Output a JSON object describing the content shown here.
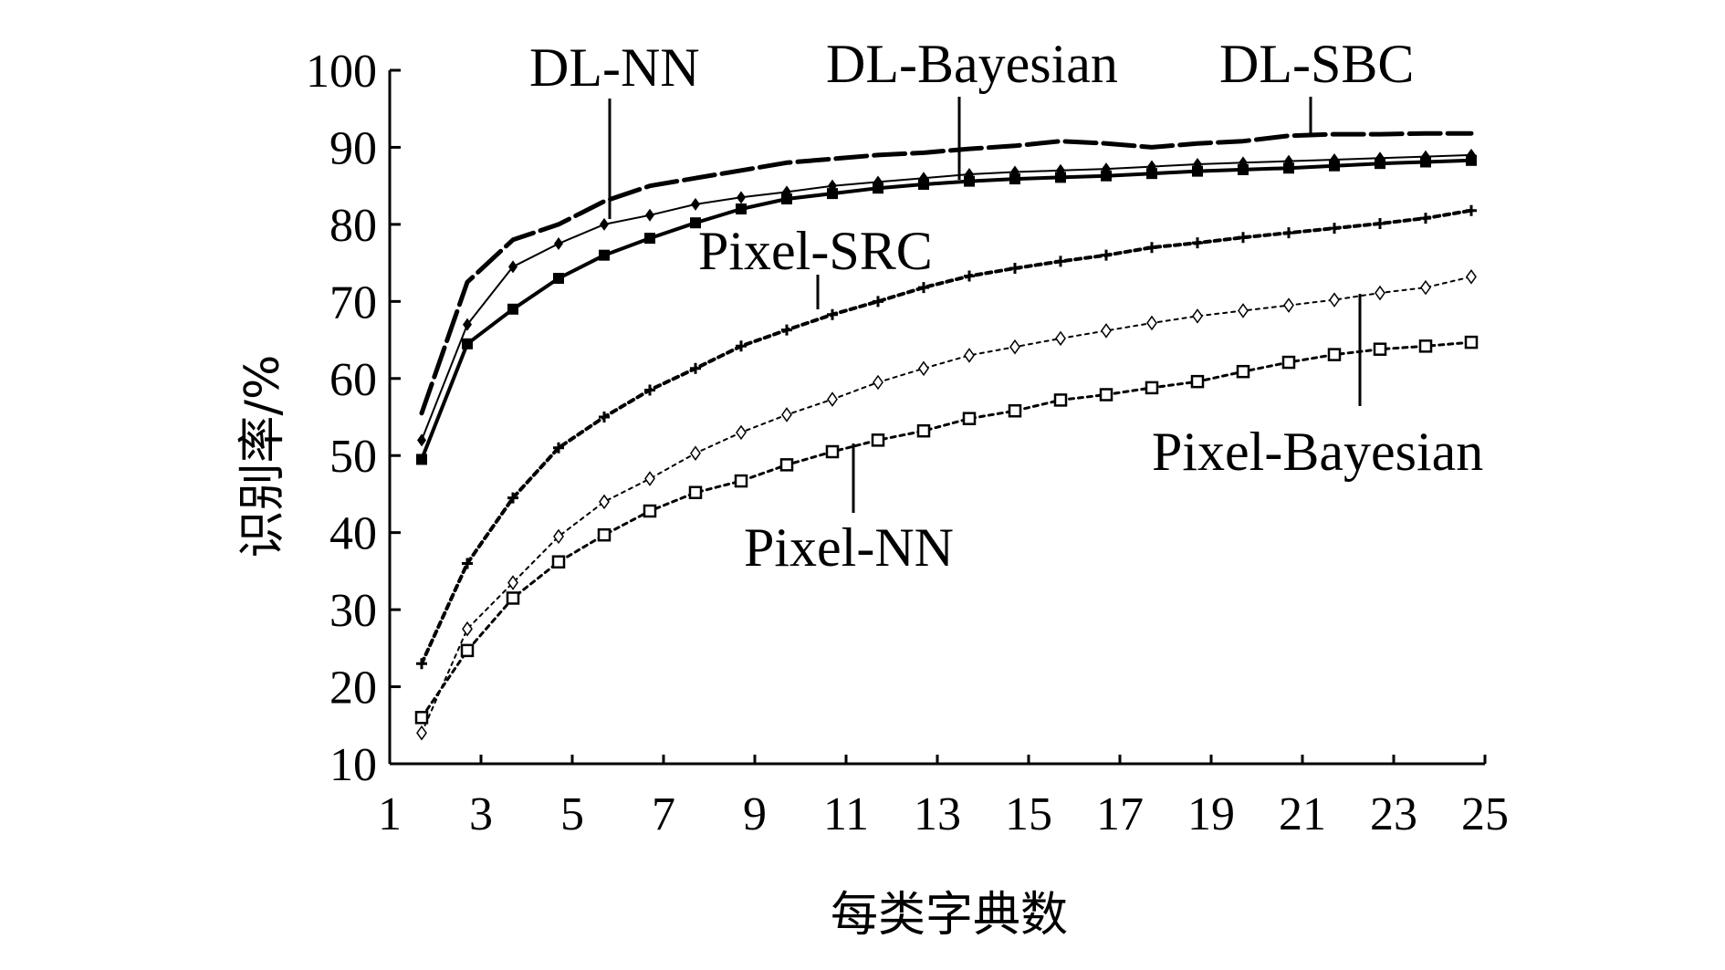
{
  "chart_data": {
    "type": "line",
    "title": "",
    "xlabel": "每类字典数",
    "ylabel": "识别率/%",
    "xlim": [
      1,
      25
    ],
    "ylim": [
      10,
      100
    ],
    "xticks": [
      1,
      3,
      5,
      7,
      9,
      11,
      13,
      15,
      17,
      19,
      21,
      23,
      25
    ],
    "yticks": [
      10,
      20,
      30,
      40,
      50,
      60,
      70,
      80,
      90,
      100
    ],
    "grid": false,
    "legend": "inline callout labels",
    "x": [
      1.7,
      2.7,
      3.7,
      4.7,
      5.7,
      6.7,
      7.7,
      8.7,
      9.7,
      10.7,
      11.7,
      12.7,
      13.7,
      14.7,
      15.7,
      16.7,
      17.7,
      18.7,
      19.7,
      20.7,
      21.7,
      22.7,
      23.7,
      24.7
    ],
    "series": [
      {
        "name": "DL-SBC",
        "color": "#000000",
        "values": [
          55.5,
          72.5,
          78,
          80,
          83,
          85,
          86,
          87,
          88,
          88.5,
          89,
          89.3,
          89.8,
          90.2,
          90.8,
          90.5,
          90,
          90.5,
          90.8,
          91.5,
          91.7,
          91.7,
          91.8,
          91.8
        ]
      },
      {
        "name": "DL-NN",
        "color": "#000000",
        "values": [
          52,
          67,
          74.5,
          77.5,
          80,
          81.2,
          82.6,
          83.5,
          84.2,
          85,
          85.5,
          86,
          86.5,
          86.8,
          87,
          87.2,
          87.5,
          87.8,
          88,
          88.2,
          88.4,
          88.6,
          88.8,
          89
        ]
      },
      {
        "name": "DL-Bayesian",
        "color": "#000000",
        "values": [
          49.5,
          64.5,
          69,
          73,
          76,
          78.2,
          80.2,
          82,
          83.3,
          84,
          84.7,
          85.2,
          85.6,
          85.9,
          86.1,
          86.3,
          86.6,
          86.9,
          87.1,
          87.3,
          87.6,
          87.9,
          88.1,
          88.3
        ]
      },
      {
        "name": "Pixel-SRC",
        "color": "#000000",
        "values": [
          23,
          36,
          44.5,
          51,
          55,
          58.5,
          61.3,
          64.2,
          66.3,
          68.3,
          70,
          71.8,
          73.3,
          74.3,
          75.2,
          76,
          77,
          77.6,
          78.3,
          78.9,
          79.5,
          80.1,
          80.8,
          81.8
        ]
      },
      {
        "name": "Pixel-Bayesian",
        "color": "#000000",
        "values": [
          14,
          27.5,
          33.5,
          39.5,
          44,
          47,
          50.3,
          53,
          55.3,
          57.3,
          59.5,
          61.3,
          63,
          64.1,
          65.2,
          66.2,
          67.2,
          68.1,
          68.8,
          69.5,
          70.2,
          71.1,
          71.8,
          73.2
        ]
      },
      {
        "name": "Pixel-NN",
        "color": "#000000",
        "values": [
          16,
          24.7,
          31.5,
          36.2,
          39.7,
          42.8,
          45.2,
          46.7,
          48.8,
          50.5,
          52,
          53.2,
          54.8,
          55.8,
          57.2,
          57.9,
          58.8,
          59.6,
          60.9,
          62.1,
          63.1,
          63.8,
          64.2,
          64.7
        ]
      }
    ],
    "label_texts": [
      "DL-NN",
      "DL-Bayesian",
      "DL-SBC",
      "Pixel-SRC",
      "Pixel-Bayesian",
      "Pixel-NN"
    ]
  }
}
